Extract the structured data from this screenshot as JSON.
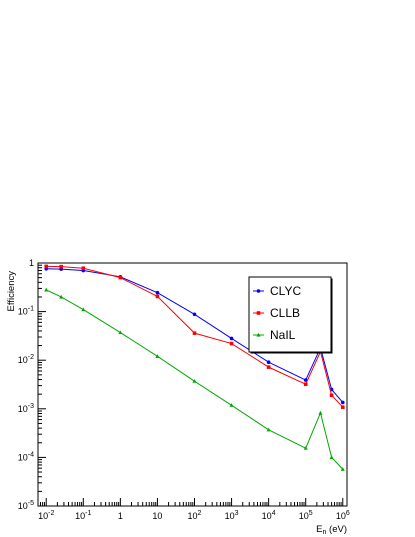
{
  "chart_data": {
    "type": "line",
    "xlabel": {
      "base": "E",
      "sub": "n",
      "unit": " (eV)"
    },
    "ylabel": "Efficiency",
    "x_scale": "log",
    "y_scale": "log",
    "xlim": [
      0.006,
      1300000.0
    ],
    "ylim": [
      1e-05,
      1
    ],
    "grid": false,
    "legend_position": "top-right",
    "x_ticks": [
      {
        "value": 0.01,
        "base": "10",
        "exp": "-2"
      },
      {
        "value": 0.1,
        "base": "10",
        "exp": "-1"
      },
      {
        "value": 1,
        "base": "1",
        "exp": ""
      },
      {
        "value": 10,
        "base": "10",
        "exp": ""
      },
      {
        "value": 100,
        "base": "10",
        "exp": "2"
      },
      {
        "value": 1000,
        "base": "10",
        "exp": "3"
      },
      {
        "value": 10000,
        "base": "10",
        "exp": "4"
      },
      {
        "value": 100000,
        "base": "10",
        "exp": "5"
      },
      {
        "value": 1000000,
        "base": "10",
        "exp": "6"
      }
    ],
    "y_ticks": [
      {
        "value": 1e-05,
        "base": "10",
        "exp": "-5"
      },
      {
        "value": 0.0001,
        "base": "10",
        "exp": "-4"
      },
      {
        "value": 0.001,
        "base": "10",
        "exp": "-3"
      },
      {
        "value": 0.01,
        "base": "10",
        "exp": "-2"
      },
      {
        "value": 0.1,
        "base": "10",
        "exp": "-1"
      },
      {
        "value": 1,
        "base": "1",
        "exp": ""
      }
    ],
    "x": [
      0.01,
      0.0253,
      0.1,
      1,
      10,
      100,
      1000,
      10000,
      100000,
      250000,
      500000,
      1000000
    ],
    "series": [
      {
        "name": "CLYC",
        "color": "#0000ff",
        "marker": "circle",
        "values": [
          0.76,
          0.75,
          0.7,
          0.52,
          0.245,
          0.088,
          0.028,
          0.0091,
          0.0039,
          0.018,
          0.0025,
          0.00135
        ]
      },
      {
        "name": "CLLB",
        "color": "#ff0000",
        "marker": "square",
        "values": [
          0.85,
          0.84,
          0.78,
          0.5,
          0.205,
          0.036,
          0.022,
          0.0072,
          0.0032,
          0.015,
          0.0019,
          0.00108
        ]
      },
      {
        "name": "NaIL",
        "color": "#00aa00",
        "marker": "triangle",
        "values": [
          0.28,
          0.2,
          0.11,
          0.037,
          0.012,
          0.0037,
          0.00118,
          0.00037,
          0.000155,
          0.00082,
          0.0001,
          5.7e-05
        ]
      }
    ]
  }
}
